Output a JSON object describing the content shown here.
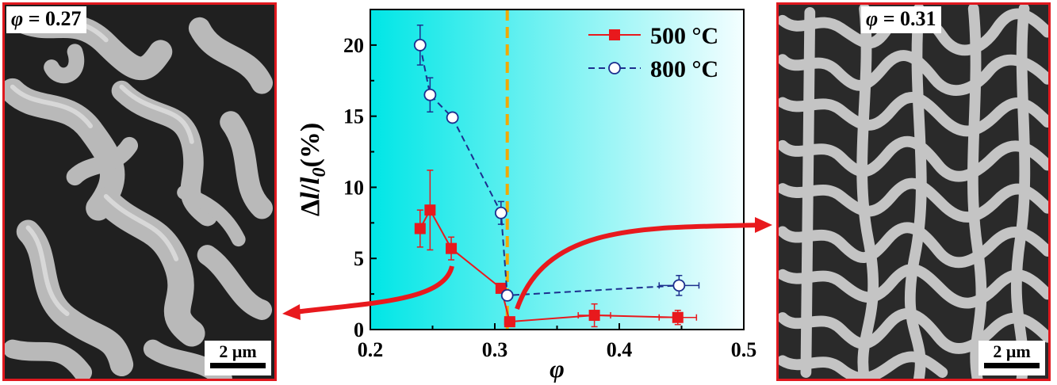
{
  "left_panel": {
    "phi_symbol": "φ",
    "phi_value": " = 0.27",
    "scale_label": "2 μm"
  },
  "right_panel": {
    "phi_symbol": "φ",
    "phi_value": " = 0.31",
    "scale_label": "2 μm"
  },
  "chart_data": {
    "type": "scatter",
    "xlabel": "φ",
    "ylabel_parts": [
      "Δ",
      "l",
      "/",
      "l",
      "0",
      "(%)"
    ],
    "xlim": [
      0.2,
      0.5
    ],
    "ylim": [
      0,
      22.5
    ],
    "x_ticks": [
      0.2,
      0.3,
      0.4,
      0.5
    ],
    "x_tick_labels": [
      "0.2",
      "0.3",
      "0.4",
      "0.5"
    ],
    "y_ticks": [
      0,
      5,
      10,
      15,
      20
    ],
    "y_tick_labels": [
      "0",
      "5",
      "10",
      "15",
      "20"
    ],
    "vertical_line_x": 0.31,
    "legend_position": "top-right",
    "series": [
      {
        "name": "500 °C",
        "color": "#e8191d",
        "marker": "filled-square",
        "line": "solid",
        "points": [
          {
            "x": 0.24,
            "y": 7.1,
            "yerr": 1.3,
            "xerr": 0.003
          },
          {
            "x": 0.248,
            "y": 8.4,
            "yerr": 2.8,
            "xerr": 0.003
          },
          {
            "x": 0.265,
            "y": 5.7,
            "yerr": 0.8,
            "xerr": 0.003
          },
          {
            "x": 0.305,
            "y": 2.9,
            "yerr": 0.3,
            "xerr": 0.003
          },
          {
            "x": 0.312,
            "y": 0.55,
            "yerr": 0.15,
            "xerr": 0.004
          },
          {
            "x": 0.38,
            "y": 1.0,
            "yerr": 0.8,
            "xerr": 0.013
          },
          {
            "x": 0.447,
            "y": 0.85,
            "yerr": 0.5,
            "xerr": 0.015
          }
        ]
      },
      {
        "name": "800 °C",
        "color": "#1c2f8e",
        "marker": "open-circle",
        "line": "dashed",
        "points": [
          {
            "x": 0.24,
            "y": 20.0,
            "yerr": 1.4,
            "xerr": 0.003
          },
          {
            "x": 0.248,
            "y": 16.5,
            "yerr": 1.2,
            "xerr": 0.003
          },
          {
            "x": 0.266,
            "y": 14.9,
            "yerr": 0.3,
            "xerr": 0.003
          },
          {
            "x": 0.305,
            "y": 8.2,
            "yerr": 0.8,
            "xerr": 0.003
          },
          {
            "x": 0.31,
            "y": 2.4,
            "yerr": 0.35,
            "xerr": 0.004
          },
          {
            "x": 0.448,
            "y": 3.1,
            "yerr": 0.7,
            "xerr": 0.016
          }
        ]
      }
    ],
    "colors": {
      "background_left": "#00e6e6",
      "background_right": "#f4feff",
      "vertical_line": "#f2a900",
      "arrows": "#e8191d"
    }
  }
}
